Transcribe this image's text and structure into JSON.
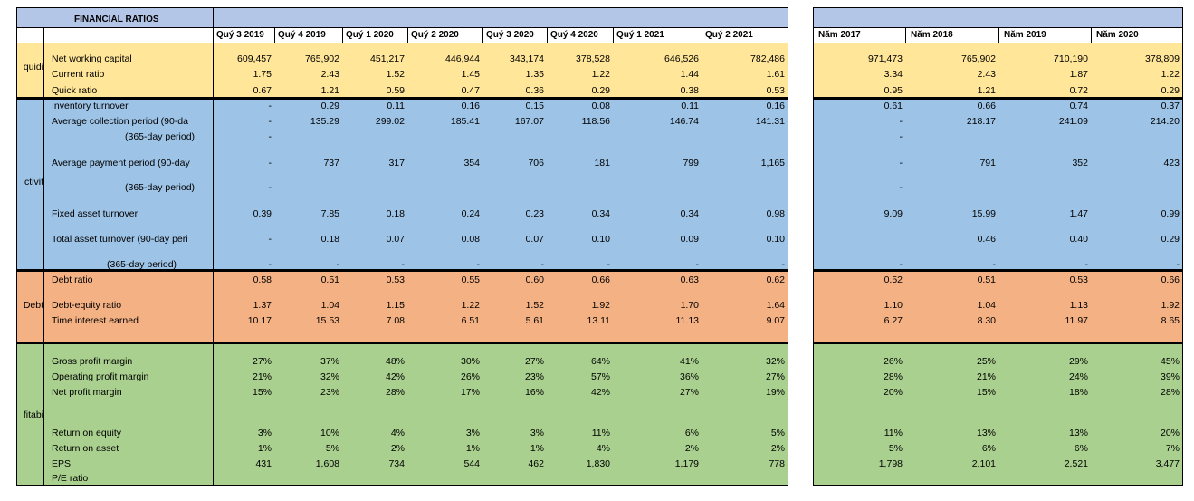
{
  "title": "FINANCIAL RATIOS",
  "quarter_headers": [
    "Quý 3 2019",
    "Quý 4 2019",
    "Quý 1 2020",
    "Quý 2 2020",
    "Quý 3 2020",
    "Quý 4 2020",
    "Quý 1 2021",
    "Quý 2 2021"
  ],
  "year_headers": [
    "Năm 2017",
    "Năm 2018",
    "Năm 2019",
    "Năm 2020"
  ],
  "sections": [
    {
      "label": "quidi",
      "rows": [
        {
          "label": "Net working capital",
          "quarters": [
            "609,457",
            "765,902",
            "451,217",
            "446,944",
            "343,174",
            "378,528",
            "646,526",
            "782,486"
          ],
          "years": [
            "971,473",
            "765,902",
            "710,190",
            "378,809"
          ]
        },
        {
          "label": "Current ratio",
          "quarters": [
            "1.75",
            "2.43",
            "1.52",
            "1.45",
            "1.35",
            "1.22",
            "1.44",
            "1.61"
          ],
          "years": [
            "3.34",
            "2.43",
            "1.87",
            "1.22"
          ]
        },
        {
          "label": "Quick ratio",
          "quarters": [
            "0.67",
            "1.21",
            "0.59",
            "0.47",
            "0.36",
            "0.29",
            "0.38",
            "0.53"
          ],
          "years": [
            "0.95",
            "1.21",
            "0.72",
            "0.29"
          ]
        }
      ]
    },
    {
      "label": "ctivit",
      "rows": [
        {
          "label": "Inventory turnover",
          "quarters": [
            "-",
            "0.29",
            "0.11",
            "0.16",
            "0.15",
            "0.08",
            "0.11",
            "0.16"
          ],
          "years": [
            "0.61",
            "0.66",
            "0.74",
            "0.37"
          ]
        },
        {
          "label": "Average collection period (90-da",
          "quarters": [
            "-",
            "135.29",
            "299.02",
            "185.41",
            "167.07",
            "118.56",
            "146.74",
            "141.31"
          ],
          "years": [
            "-",
            "218.17",
            "241.09",
            "214.20"
          ]
        },
        {
          "label": "(365-day period)",
          "quarters": [
            "-",
            null,
            null,
            null,
            null,
            null,
            null,
            null
          ],
          "years": [
            "-",
            null,
            null,
            null
          ]
        },
        {
          "label": "Average payment period (90-day",
          "quarters": [
            "-",
            "737",
            "317",
            "354",
            "706",
            "181",
            "799",
            "1,165"
          ],
          "years": [
            "-",
            "791",
            "352",
            "423"
          ]
        },
        {
          "label": "(365-day period)",
          "quarters": [
            "-",
            null,
            null,
            null,
            null,
            null,
            null,
            null
          ],
          "years": [
            "-",
            null,
            null,
            null
          ]
        },
        {
          "label": "Fixed asset turnover",
          "quarters": [
            "0.39",
            "7.85",
            "0.18",
            "0.24",
            "0.23",
            "0.34",
            "0.34",
            "0.98"
          ],
          "years": [
            "9.09",
            "15.99",
            "1.47",
            "0.99"
          ]
        },
        {
          "label": "Total asset turnover (90-day peri",
          "quarters": [
            "-",
            "0.18",
            "0.07",
            "0.08",
            "0.07",
            "0.10",
            "0.09",
            "0.10"
          ],
          "years": [
            null,
            "0.46",
            "0.40",
            "0.29"
          ]
        },
        {
          "label": "(365-day period)",
          "quarters": [
            "-",
            "-",
            "-",
            "-",
            "-",
            "-",
            "-",
            "-"
          ],
          "years": [
            "-",
            "-",
            "-",
            "-"
          ]
        }
      ]
    },
    {
      "label": "Debt",
      "rows": [
        {
          "label": "Debt ratio",
          "quarters": [
            "0.58",
            "0.51",
            "0.53",
            "0.55",
            "0.60",
            "0.66",
            "0.63",
            "0.62"
          ],
          "years": [
            "0.52",
            "0.51",
            "0.53",
            "0.66"
          ]
        },
        {
          "label": "Debt-equity ratio",
          "quarters": [
            "1.37",
            "1.04",
            "1.15",
            "1.22",
            "1.52",
            "1.92",
            "1.70",
            "1.64"
          ],
          "years": [
            "1.10",
            "1.04",
            "1.13",
            "1.92"
          ]
        },
        {
          "label": "Time interest earned",
          "quarters": [
            "10.17",
            "15.53",
            "7.08",
            "6.51",
            "5.61",
            "13.11",
            "11.13",
            "9.07"
          ],
          "years": [
            "6.27",
            "8.30",
            "11.97",
            "8.65"
          ]
        }
      ]
    },
    {
      "label": "fitabi",
      "rows": [
        {
          "label": "Gross profit margin",
          "quarters": [
            "27%",
            "37%",
            "48%",
            "30%",
            "27%",
            "64%",
            "41%",
            "32%"
          ],
          "years": [
            "26%",
            "25%",
            "29%",
            "45%"
          ]
        },
        {
          "label": "Operating profit margin",
          "quarters": [
            "21%",
            "32%",
            "42%",
            "26%",
            "23%",
            "57%",
            "36%",
            "27%"
          ],
          "years": [
            "28%",
            "21%",
            "24%",
            "39%"
          ]
        },
        {
          "label": "Net profit margin",
          "quarters": [
            "15%",
            "23%",
            "28%",
            "17%",
            "16%",
            "42%",
            "27%",
            "19%"
          ],
          "years": [
            "20%",
            "15%",
            "18%",
            "28%"
          ]
        },
        {
          "label": "Return on equity",
          "quarters": [
            "3%",
            "10%",
            "4%",
            "3%",
            "3%",
            "11%",
            "6%",
            "5%"
          ],
          "years": [
            "11%",
            "13%",
            "13%",
            "20%"
          ]
        },
        {
          "label": "Return on asset",
          "quarters": [
            "1%",
            "5%",
            "2%",
            "1%",
            "1%",
            "4%",
            "2%",
            "2%"
          ],
          "years": [
            "5%",
            "6%",
            "6%",
            "7%"
          ]
        },
        {
          "label": "EPS",
          "quarters": [
            "431",
            "1,608",
            "734",
            "544",
            "462",
            "1,830",
            "1,179",
            "778"
          ],
          "years": [
            "1,798",
            "2,101",
            "2,521",
            "3,477"
          ]
        },
        {
          "label": "P/E ratio",
          "quarters": [
            null,
            null,
            null,
            null,
            null,
            null,
            null,
            null
          ],
          "years": [
            null,
            null,
            null,
            null
          ]
        }
      ]
    }
  ]
}
